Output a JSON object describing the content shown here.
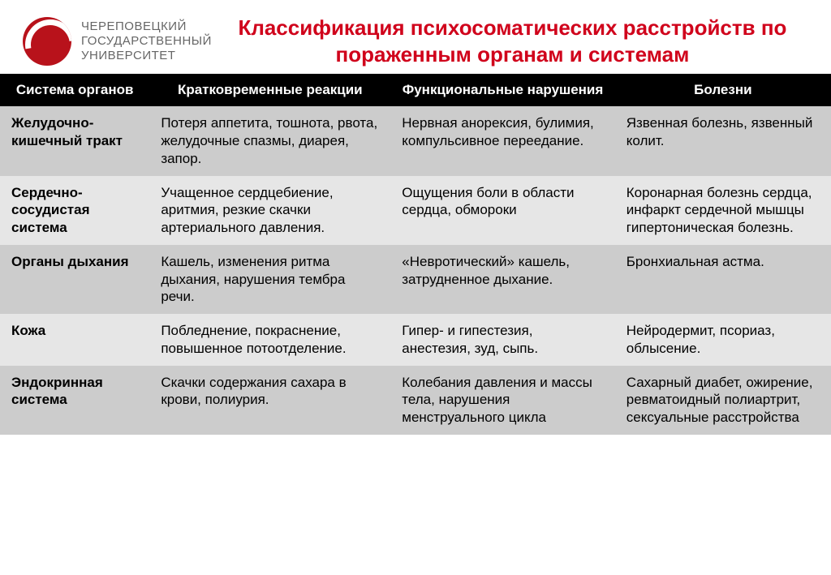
{
  "logo": {
    "line1": "ЧЕРЕПОВЕЦКИЙ",
    "line2": "ГОСУДАРСТВЕННЫЙ",
    "line3": "УНИВЕРСИТЕТ"
  },
  "title": "Классификация психосоматических расстройств по пораженным органам и системам",
  "colors": {
    "title_color": "#d0021b",
    "logo_circle": "#b8121b",
    "header_bg": "#000000",
    "header_fg": "#ffffff",
    "band_a": "#cccccc",
    "band_b": "#e6e6e6",
    "text": "#000000",
    "logo_text": "#666666"
  },
  "typography": {
    "title_fontsize": 26,
    "title_weight": 700,
    "header_fontsize": 17,
    "cell_fontsize": 17,
    "logo_fontsize": 15
  },
  "table": {
    "columns": [
      "Система органов",
      "Кратковременные реакции",
      "Функциональные нарушения",
      "Болезни"
    ],
    "column_widths_pct": [
      18,
      29,
      27,
      26
    ],
    "rows": [
      {
        "band": "a",
        "system": "Желудочно-кишечный тракт",
        "short": "Потеря аппетита, тошнота, рвота, желудочные спазмы, диарея, запор.",
        "func": "Нервная анорексия, булимия, компульсивное переедание.",
        "disease": "Язвенная болезнь, язвенный колит."
      },
      {
        "band": "b",
        "system": "Сердечно-сосудистая система",
        "short": "Учащенное сердцебиение, аритмия, резкие скачки артериального давления.",
        "func": "Ощущения боли в области сердца, обмороки",
        "disease": "Коронарная болезнь сердца, инфаркт сердечной мышцы гипертоническая болезнь."
      },
      {
        "band": "a",
        "system": "Органы дыхания",
        "short": "Кашель, изменения ритма дыхания, нарушения тембра речи.",
        "func": "«Невротический» кашель, затрудненное дыхание.",
        "disease": "Бронхиальная астма."
      },
      {
        "band": "b",
        "system": "Кожа",
        "short": "Побледнение, покраснение, повышенное потоотделение.",
        "func": "Гипер- и гипестезия, анестезия, зуд, сыпь.",
        "disease": "Нейродермит, псориаз, облысение."
      },
      {
        "band": "a",
        "system": "Эндокринная система",
        "short": "Скачки содержания сахара в крови, полиурия.",
        "func": "Колебания давления и массы тела, нарушения менструального цикла",
        "disease": "Сахарный диабет, ожирение, ревматоидный полиартрит, сексуальные расстройства"
      }
    ]
  }
}
